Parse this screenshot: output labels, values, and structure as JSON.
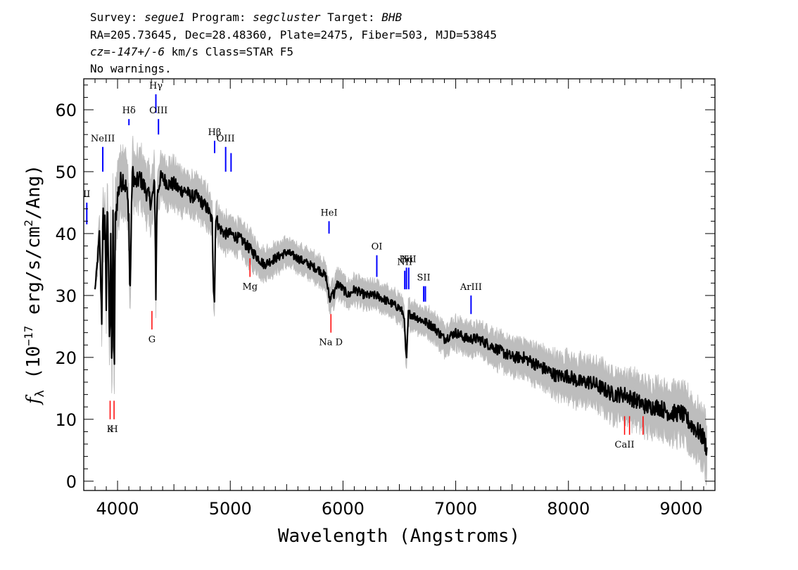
{
  "header": {
    "line1": [
      {
        "text": "Survey: ",
        "italic": false
      },
      {
        "text": "segue1",
        "italic": true
      },
      {
        "text": " Program: ",
        "italic": false
      },
      {
        "text": "segcluster",
        "italic": true
      },
      {
        "text": " Target: ",
        "italic": false
      },
      {
        "text": "BHB",
        "italic": true
      }
    ],
    "line2": "RA=205.73645, Dec=28.48360, Plate=2475, Fiber=503, MJD=53845",
    "line3": [
      {
        "text": "cz=-147+/-6",
        "italic": true
      },
      {
        "text": " km/s Class=STAR F5",
        "italic": false
      }
    ],
    "line4": "No warnings."
  },
  "chart_data": {
    "type": "line",
    "title": "",
    "xlabel": "Wavelength (Angstroms)",
    "ylabel": "f_λ (10^-17 erg/s/cm^2/Ang)",
    "ylabel_display": {
      "f": "f",
      "sub": "λ",
      "pre": " (10",
      "exp1": "−17",
      "mid": " erg/s/cm",
      "exp2": "2",
      "post": "/Ang)"
    },
    "xlim": [
      3700,
      9300
    ],
    "ylim": [
      -1.5,
      65
    ],
    "xticks": [
      4000,
      5000,
      6000,
      7000,
      8000,
      9000
    ],
    "xtick_labels": [
      "4000",
      "5000",
      "6000",
      "7000",
      "8000",
      "9000"
    ],
    "yticks": [
      0,
      10,
      20,
      30,
      40,
      50,
      60
    ],
    "ytick_labels": [
      "0",
      "10",
      "20",
      "30",
      "40",
      "50",
      "60"
    ],
    "grid": false,
    "series": [
      {
        "role": "flux",
        "color": "#000000",
        "x": [
          3800,
          3820,
          3840,
          3860,
          3870,
          3880,
          3890,
          3900,
          3910,
          3930,
          3940,
          3950,
          3960,
          3970,
          3980,
          4000,
          4020,
          4050,
          4080,
          4100,
          4110,
          4130,
          4160,
          4200,
          4250,
          4300,
          4330,
          4340,
          4350,
          4380,
          4400,
          4450,
          4500,
          4550,
          4600,
          4650,
          4700,
          4750,
          4800,
          4840,
          4850,
          4861,
          4870,
          4900,
          4950,
          5000,
          5100,
          5200,
          5300,
          5400,
          5500,
          5600,
          5700,
          5800,
          5850,
          5875,
          5890,
          5900,
          5920,
          5950,
          6000,
          6050,
          6100,
          6200,
          6300,
          6400,
          6500,
          6540,
          6563,
          6580,
          6600,
          6700,
          6800,
          6900,
          7000,
          7100,
          7200,
          7300,
          7400,
          7500,
          7600,
          7700,
          7800,
          7900,
          8000,
          8100,
          8200,
          8300,
          8400,
          8500,
          8600,
          8700,
          8800,
          8900,
          9000,
          9100,
          9150,
          9200,
          9230
        ],
        "y": [
          31,
          35,
          40,
          26,
          44,
          40,
          43,
          28,
          46,
          22,
          40,
          15,
          44,
          14,
          42,
          46,
          48,
          49,
          47,
          43,
          29,
          50,
          48,
          49,
          47,
          45,
          48,
          30,
          46,
          49,
          49,
          48,
          48,
          47,
          47,
          46,
          46,
          45,
          44,
          42,
          32,
          29,
          43,
          41,
          40,
          40,
          39,
          37,
          35,
          36,
          37,
          36,
          35,
          34,
          33,
          30,
          29,
          31,
          30,
          32,
          31,
          30,
          31,
          30,
          30,
          29,
          28,
          27,
          19,
          27,
          27,
          26,
          25,
          23,
          24,
          23,
          23,
          22,
          21,
          20,
          20,
          19,
          18,
          17,
          17,
          16,
          16,
          15,
          14,
          14,
          13,
          12,
          12,
          11,
          11,
          9,
          8,
          7,
          5
        ],
        "noise": [
          0,
          1.5,
          1.5,
          2,
          2,
          2,
          2,
          2.5,
          2.5,
          2.5,
          3,
          3,
          3,
          3,
          3,
          3,
          3,
          3,
          3,
          3,
          2.5,
          2.5,
          2.5,
          2.5,
          2.5,
          2.5,
          2.5,
          2,
          2,
          2,
          2,
          2,
          2,
          2,
          1.8,
          1.8,
          1.8,
          1.8,
          1.8,
          1.6,
          1.6,
          1.6,
          1.6,
          1.6,
          1.6,
          1.5,
          1.5,
          1.5,
          1.3,
          1.3,
          1.2,
          1.2,
          1.2,
          1.2,
          1.2,
          1.2,
          1.2,
          1.2,
          1.2,
          1.2,
          1.2,
          1.2,
          1.2,
          1.2,
          1.2,
          1.2,
          1.2,
          1.2,
          1.2,
          1.2,
          1.2,
          1.2,
          1.3,
          1.3,
          1.3,
          1.4,
          1.4,
          1.5,
          1.5,
          1.6,
          1.6,
          1.7,
          1.8,
          1.8,
          1.9,
          2,
          2,
          2.1,
          2.1,
          2.2,
          2.2,
          2.3,
          2.3,
          2.4,
          2.4,
          2.5,
          2.5,
          2.5,
          2.5
        ]
      },
      {
        "role": "error band",
        "color": "#bdbdbd",
        "note": "grey 1-sigma envelope around flux"
      }
    ],
    "annotations": [
      {
        "label": "Hδ",
        "x": 4101,
        "y_top": 58.5,
        "y_bottom": 57.5,
        "color": "#0000ff",
        "group": "emission"
      },
      {
        "label": "Hγ",
        "x": 4340,
        "y_top": 62.5,
        "y_bottom": 59.5,
        "color": "#0000ff",
        "group": "emission"
      },
      {
        "label": "OIII",
        "x": 4363,
        "y_top": 58.5,
        "y_bottom": 56,
        "color": "#0000ff",
        "group": "emission"
      },
      {
        "label": "Hβ",
        "x": 4861,
        "y_top": 55,
        "y_bottom": 53,
        "color": "#0000ff",
        "group": "emission"
      },
      {
        "label": "OIII",
        "x": 4959,
        "y_top": 54,
        "y_bottom": 50,
        "color": "#0000ff",
        "group": "emission"
      },
      {
        "label": "",
        "x": 5007,
        "y_top": 53,
        "y_bottom": 50,
        "color": "#0000ff",
        "group": "emission"
      },
      {
        "label": "NeIII",
        "x": 3869,
        "y_top": 54,
        "y_bottom": 50,
        "color": "#0000ff",
        "group": "emission"
      },
      {
        "label": "II",
        "x": 3727,
        "y_top": 45,
        "y_bottom": 41.5,
        "color": "#0000ff",
        "group": "emission"
      },
      {
        "label": "HeI",
        "x": 5876,
        "y_top": 42,
        "y_bottom": 40,
        "color": "#0000ff",
        "group": "emission"
      },
      {
        "label": "OI",
        "x": 6300,
        "y_top": 36.5,
        "y_bottom": 33,
        "color": "#0000ff",
        "group": "emission"
      },
      {
        "label": "NII",
        "x": 6548,
        "y_top": 34,
        "y_bottom": 31,
        "color": "#0000ff",
        "group": "emission"
      },
      {
        "label": "Hα",
        "x": 6563,
        "y_top": 34.5,
        "y_bottom": 31,
        "color": "#0000ff",
        "group": "emission"
      },
      {
        "label": "NII",
        "x": 6583,
        "y_top": 34.5,
        "y_bottom": 31,
        "color": "#0000ff",
        "group": "emission"
      },
      {
        "label": "SII",
        "x": 6716,
        "y_top": 31.5,
        "y_bottom": 29,
        "color": "#0000ff",
        "group": "emission"
      },
      {
        "label": "",
        "x": 6731,
        "y_top": 31.5,
        "y_bottom": 29,
        "color": "#0000ff",
        "group": "emission"
      },
      {
        "label": "ArIII",
        "x": 7136,
        "y_top": 30,
        "y_bottom": 27,
        "color": "#0000ff",
        "group": "emission"
      },
      {
        "label": "Mg",
        "x": 5175,
        "y_top": 36,
        "y_bottom": 33,
        "color": "#ff0000",
        "group": "absorption"
      },
      {
        "label": "G",
        "x": 4305,
        "y_top": 27.5,
        "y_bottom": 24.5,
        "color": "#ff0000",
        "group": "absorption"
      },
      {
        "label": "Na D",
        "x": 5893,
        "y_top": 27,
        "y_bottom": 24,
        "color": "#ff0000",
        "group": "absorption"
      },
      {
        "label": "K",
        "x": 3934,
        "y_top": 13,
        "y_bottom": 10,
        "color": "#ff0000",
        "group": "absorption"
      },
      {
        "label": "H",
        "x": 3969,
        "y_top": 13,
        "y_bottom": 10,
        "color": "#ff0000",
        "group": "absorption"
      },
      {
        "label": "CaII",
        "x": 8498,
        "y_top": 10.5,
        "y_bottom": 7.5,
        "color": "#ff0000",
        "group": "absorption"
      },
      {
        "label": "",
        "x": 8542,
        "y_top": 10.5,
        "y_bottom": 7.5,
        "color": "#ff0000",
        "group": "absorption"
      },
      {
        "label": "",
        "x": 8662,
        "y_top": 10.5,
        "y_bottom": 7.5,
        "color": "#ff0000",
        "group": "absorption"
      }
    ]
  }
}
